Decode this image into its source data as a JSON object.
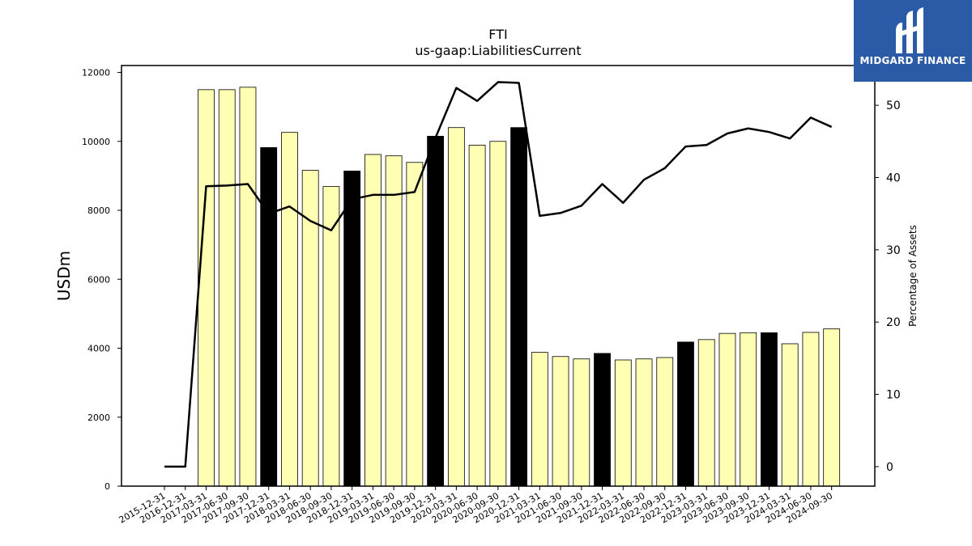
{
  "chart_data": {
    "type": "bar",
    "title": "FTI",
    "subtitle": "us-gaap:LiabilitiesCurrent",
    "ylabel": "USDm",
    "y2label": "Percentage of Assets",
    "ylim": [
      0,
      12200
    ],
    "y2lim": [
      -2.7,
      55.5
    ],
    "yticks": [
      0,
      2000,
      4000,
      6000,
      8000,
      10000,
      12000
    ],
    "y2ticks": [
      0,
      10,
      20,
      30,
      40,
      50
    ],
    "categories": [
      "2015-12-31",
      "2016-12-31",
      "2017-03-31",
      "2017-06-30",
      "2017-09-30",
      "2017-12-31",
      "2018-03-31",
      "2018-06-30",
      "2018-09-30",
      "2018-12-31",
      "2019-03-31",
      "2019-06-30",
      "2019-09-30",
      "2019-12-31",
      "2020-03-31",
      "2020-06-30",
      "2020-09-30",
      "2020-12-31",
      "2021-03-31",
      "2021-06-30",
      "2021-09-30",
      "2021-12-31",
      "2022-03-31",
      "2022-06-30",
      "2022-09-30",
      "2022-12-31",
      "2023-03-31",
      "2023-06-30",
      "2023-09-30",
      "2023-12-31",
      "2024-03-31",
      "2024-06-30",
      "2024-09-30"
    ],
    "series": [
      {
        "kind": "bar",
        "values": [
          null,
          null,
          11500,
          11500,
          11570,
          9820,
          10260,
          9160,
          8690,
          9140,
          9620,
          9580,
          9390,
          10150,
          10400,
          9890,
          10000,
          10400,
          3880,
          3760,
          3690,
          3850,
          3660,
          3690,
          3730,
          4180,
          4250,
          4430,
          4450,
          4450,
          4130,
          4460,
          4560
        ],
        "year_end": [
          false,
          false,
          false,
          false,
          false,
          true,
          false,
          false,
          false,
          true,
          false,
          false,
          false,
          true,
          false,
          false,
          false,
          true,
          false,
          false,
          false,
          true,
          false,
          false,
          false,
          true,
          false,
          false,
          false,
          true,
          false,
          false,
          false
        ]
      },
      {
        "kind": "line",
        "axis": "right",
        "values": [
          0,
          0,
          38.8,
          38.9,
          39.1,
          35.0,
          36.0,
          34.0,
          32.7,
          37.0,
          37.6,
          37.6,
          38.0,
          45.5,
          52.4,
          50.6,
          53.2,
          53.1,
          34.7,
          35.1,
          36.1,
          39.1,
          36.5,
          39.7,
          41.3,
          44.3,
          44.5,
          46.1,
          46.8,
          46.3,
          45.4,
          48.3,
          47.0
        ]
      }
    ],
    "colors": {
      "bar_regular": "#ffffb3",
      "bar_year_end": "#000000",
      "line": "#000000"
    }
  },
  "logo": {
    "text": "MIDGARD FINANCE",
    "bg": "#2b5aa6"
  }
}
